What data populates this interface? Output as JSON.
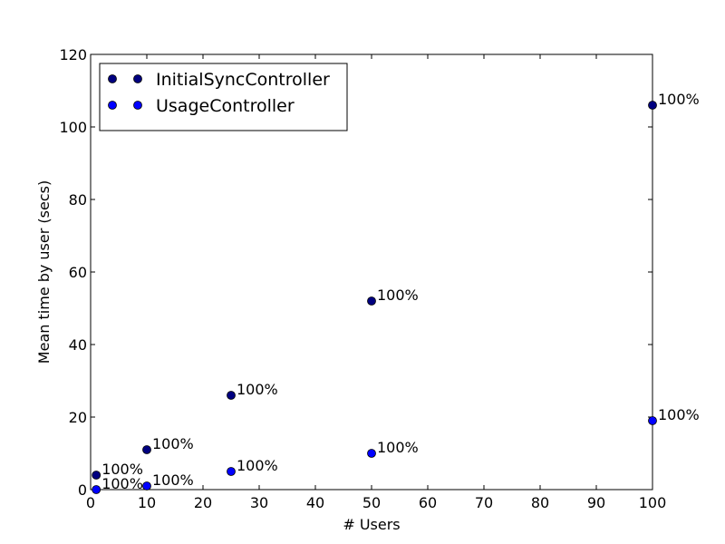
{
  "chart_data": {
    "type": "scatter",
    "title": "",
    "xlabel": "# Users",
    "ylabel": "Mean time by user (secs)",
    "xlim": [
      0,
      100
    ],
    "ylim": [
      0,
      120
    ],
    "xticks": [
      "0",
      "10",
      "20",
      "30",
      "40",
      "50",
      "60",
      "70",
      "80",
      "90",
      "100"
    ],
    "yticks": [
      "0",
      "20",
      "40",
      "60",
      "80",
      "100",
      "120"
    ],
    "grid": false,
    "legend_position": "top-left",
    "series": [
      {
        "name": "InitialSyncController",
        "color": "#000080",
        "x": [
          1,
          10,
          25,
          50,
          100
        ],
        "y": [
          4,
          11,
          26,
          52,
          106
        ],
        "labels": [
          "100%",
          "100%",
          "100%",
          "100%",
          "100%"
        ]
      },
      {
        "name": "UsageController",
        "color": "#0000ff",
        "x": [
          1,
          10,
          25,
          50,
          100
        ],
        "y": [
          0,
          1,
          5,
          10,
          19
        ],
        "labels": [
          "100%",
          "100%",
          "100%",
          "100%",
          "100%"
        ]
      }
    ]
  }
}
